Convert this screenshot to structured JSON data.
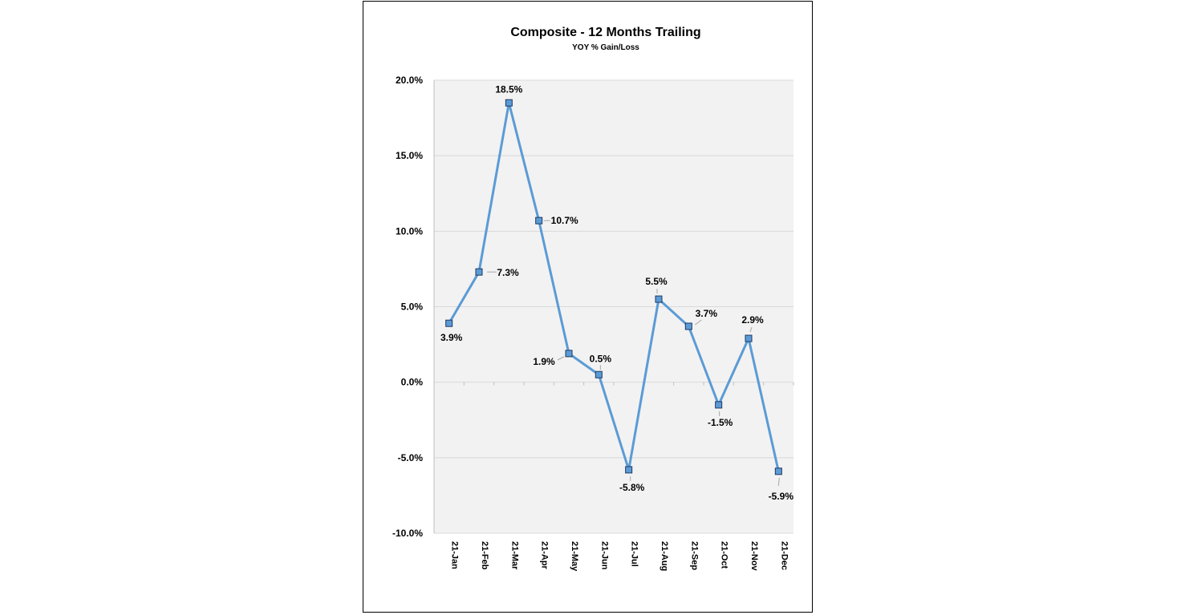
{
  "chart_data": {
    "type": "line",
    "title": "Composite - 12 Months Trailing",
    "subtitle": "YOY % Gain/Loss",
    "categories": [
      "21-Jan",
      "21-Feb",
      "21-Mar",
      "21-Apr",
      "21-May",
      "21-Jun",
      "21-Jul",
      "21-Aug",
      "21-Sep",
      "21-Oct",
      "21-Nov",
      "21-Dec"
    ],
    "values": [
      3.9,
      7.3,
      18.5,
      10.7,
      1.9,
      0.5,
      -5.8,
      5.5,
      3.7,
      -1.5,
      2.9,
      -5.9
    ],
    "data_labels": [
      "3.9%",
      "7.3%",
      "18.5%",
      "10.7%",
      "1.9%",
      "0.5%",
      "-5.8%",
      "5.5%",
      "3.7%",
      "-1.5%",
      "2.9%",
      "-5.9%"
    ],
    "yticks": [
      "20.0%",
      "15.0%",
      "10.0%",
      "5.0%",
      "0.0%",
      "-5.0%",
      "-10.0%"
    ],
    "ylim": [
      -10,
      20
    ],
    "grid": true,
    "colors": {
      "line": "#5b9bd5",
      "marker_fill": "#5b9bd5",
      "marker_stroke": "#1f3864",
      "plot_background": "#f2f2f2",
      "gridline": "#d9d9d9"
    }
  }
}
